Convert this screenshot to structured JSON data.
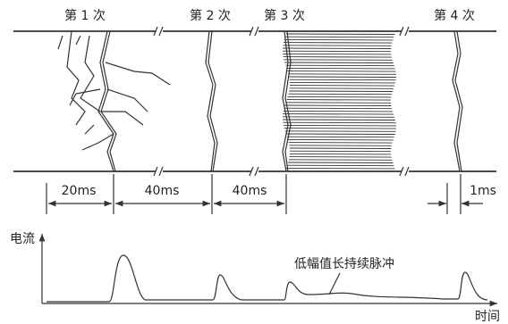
{
  "strokes": [
    {
      "label": "第 1 次"
    },
    {
      "label": "第 2 次"
    },
    {
      "label": "第 3 次"
    },
    {
      "label": "第 4 次"
    }
  ],
  "intervals": [
    "20ms",
    "40ms",
    "40ms",
    "1ms"
  ],
  "current_plot": {
    "y_label": "电流",
    "x_label": "时间",
    "annotation": "低幅值长持续脉冲"
  }
}
